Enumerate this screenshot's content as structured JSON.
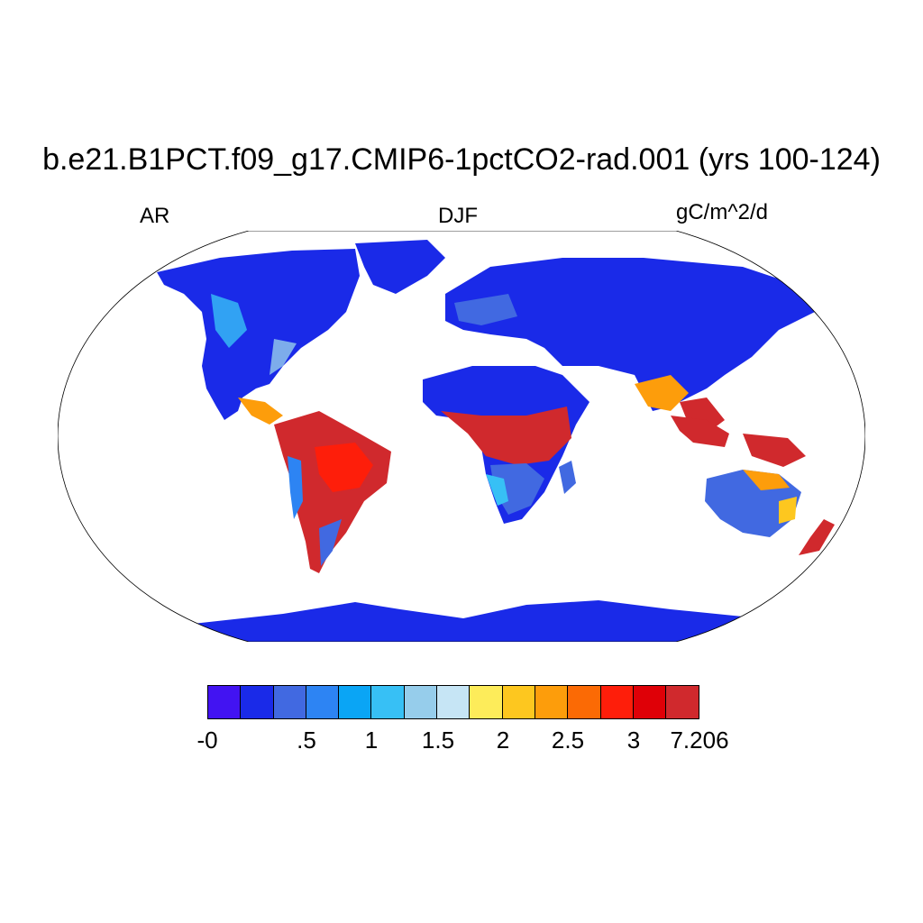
{
  "title": "b.e21.B1PCT.f09_g17.CMIP6-1pctCO2-rad.001 (yrs 100-124)",
  "left_string": "AR",
  "center_string": "DJF",
  "right_string": "gC/m^2/d",
  "colorbar": {
    "colors": [
      "#4213f2",
      "#1a2ae8",
      "#4169e1",
      "#2d84f3",
      "#0aa5f5",
      "#37c0f5",
      "#96cdeb",
      "#c6e5f5",
      "#fdec5a",
      "#fdc71f",
      "#fd9d0b",
      "#fb6a05",
      "#fe1e0a",
      "#df0007",
      "#d0292d"
    ],
    "labels": [
      "-0",
      ".5",
      "1",
      "1.5",
      "2",
      "2.5",
      "3",
      "7.206"
    ]
  },
  "map": {
    "projection": "Robinson",
    "ocean_color": "#ffffff",
    "land_base_color": "#1a2ae8"
  }
}
